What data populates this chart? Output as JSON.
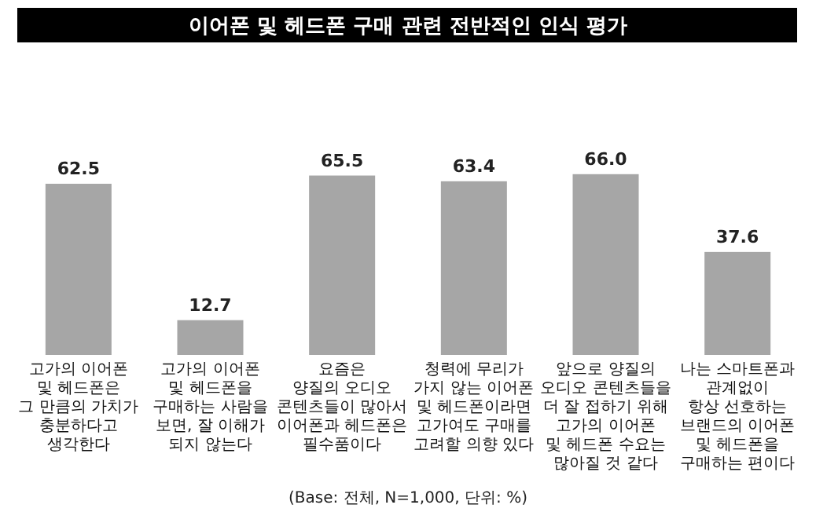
{
  "chart_data": {
    "type": "bar",
    "title": "이어폰 및 헤드폰 구매 관련 전반적인 인식 평가",
    "categories": [
      "고가의 이어폰\n및 헤드폰은\n그 만큼의 가치가\n충분하다고\n생각한다",
      "고가의 이어폰\n및 헤드폰을\n구매하는 사람을\n보면, 잘 이해가\n되지 않는다",
      "요즘은\n양질의 오디오\n콘텐츠들이 많아서\n이어폰과 헤드폰은\n필수품이다",
      "청력에 무리가\n가지 않는 이어폰\n및 헤드폰이라면\n고가여도 구매를\n고려할 의향 있다",
      "앞으로 양질의\n오디오 콘텐츠들을\n더 잘 접하기 위해\n고가의 이어폰\n및 헤드폰 수요는\n많아질 것 같다",
      "나는 스마트폰과\n관계없이\n항상 선호하는\n브랜드의 이어폰\n및 헤드폰을\n구매하는 편이다"
    ],
    "values": [
      62.5,
      12.7,
      65.5,
      63.4,
      66.0,
      37.6
    ],
    "value_labels": [
      "62.5",
      "12.7",
      "65.5",
      "63.4",
      "66.0",
      "37.6"
    ],
    "color": "#a6a6a6",
    "annotations": [
      "(Base: 전체, N=1,000, 단위: %)"
    ]
  }
}
